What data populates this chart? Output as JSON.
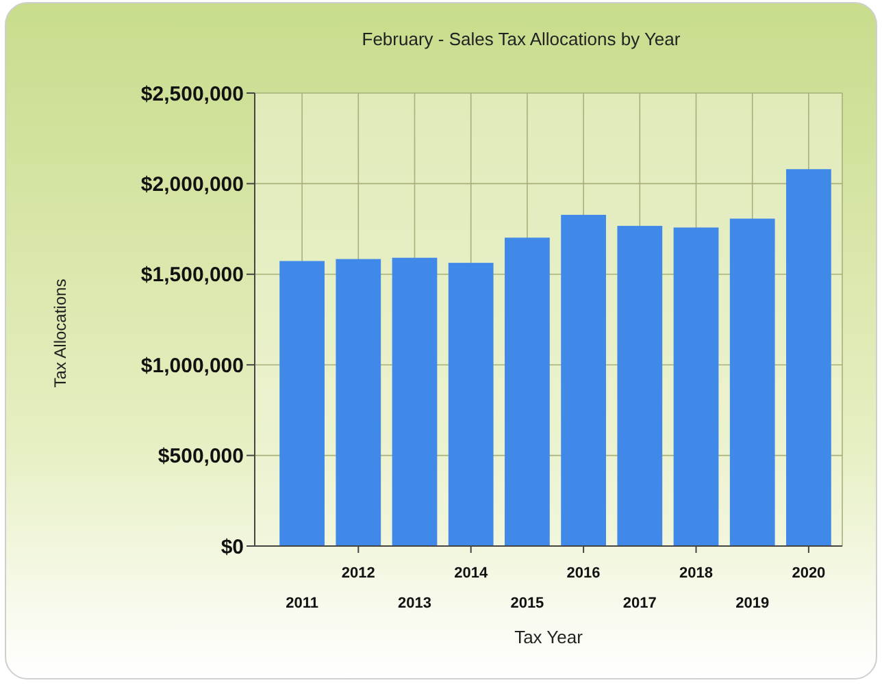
{
  "chart_data": {
    "type": "bar",
    "title": "February - Sales Tax Allocations by Year",
    "xlabel": "Tax Year",
    "ylabel": "Tax Allocations",
    "categories": [
      "2011",
      "2012",
      "2013",
      "2014",
      "2015",
      "2016",
      "2017",
      "2018",
      "2019",
      "2020"
    ],
    "values": [
      1573000,
      1584000,
      1591000,
      1563000,
      1702000,
      1828000,
      1767000,
      1758000,
      1807000,
      2080000
    ],
    "color": "#4189e8",
    "ylim": [
      0,
      2500000
    ],
    "yticks": [
      {
        "value": 0,
        "label": "$0"
      },
      {
        "value": 500000,
        "label": "$500,000"
      },
      {
        "value": 1000000,
        "label": "$1,000,000"
      },
      {
        "value": 1500000,
        "label": "$1,500,000"
      },
      {
        "value": 2000000,
        "label": "$2,000,000"
      },
      {
        "value": 2500000,
        "label": "$2,500,000"
      }
    ],
    "grid": true
  }
}
